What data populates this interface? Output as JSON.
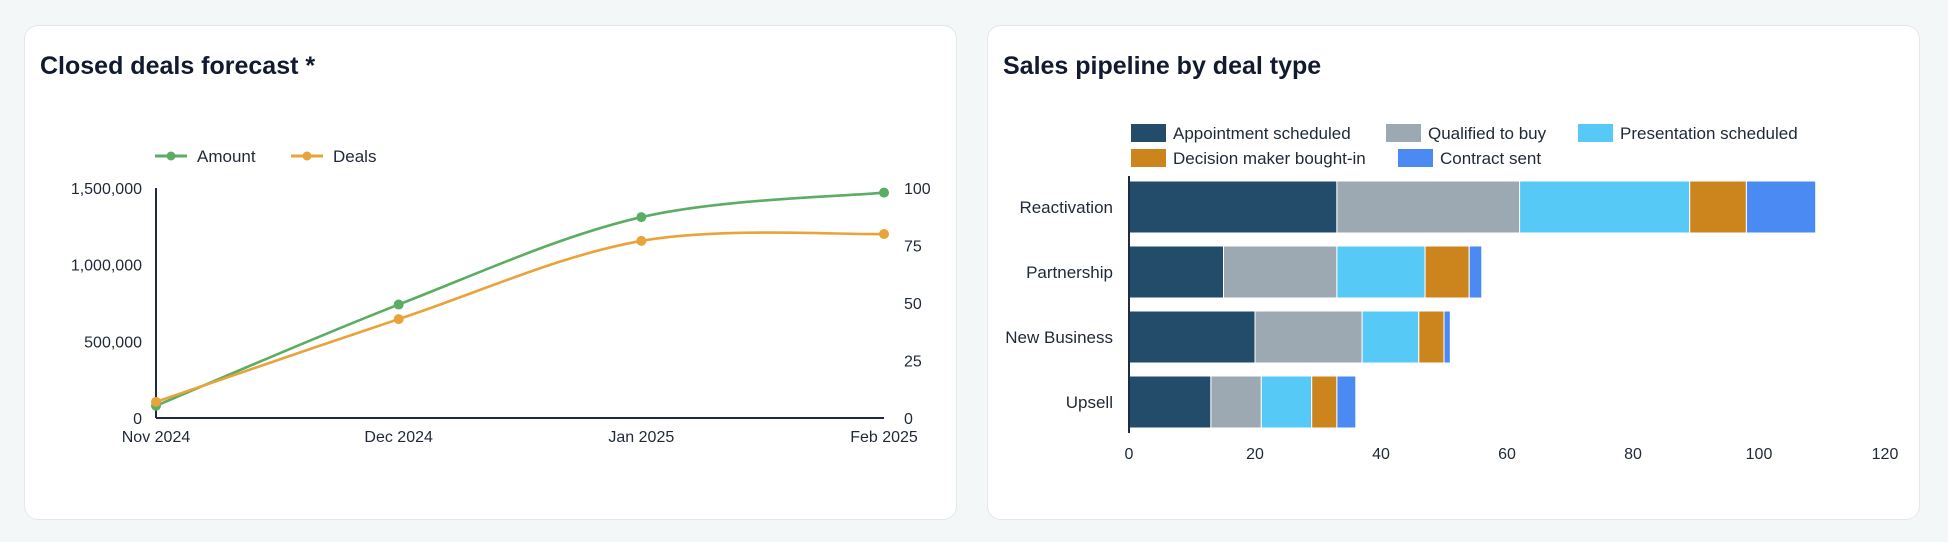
{
  "colors": {
    "amount": "#5aad62",
    "deals": "#e8a33a",
    "axis": "#1f2a44",
    "appointment": "#234b6a",
    "qualified": "#9ca8b2",
    "presentation": "#57c9f6",
    "decision": "#cc851c",
    "contract": "#4a8af2"
  },
  "left_card": {
    "title": "Closed deals forecast *"
  },
  "right_card": {
    "title": "Sales pipeline by deal type"
  },
  "chart_data": [
    {
      "type": "line",
      "title": "Closed deals forecast *",
      "categories": [
        "Nov 2024",
        "Dec 2024",
        "Jan 2025",
        "Feb 2025"
      ],
      "series": [
        {
          "name": "Amount",
          "axis": "left",
          "color": "#5aad62",
          "values": [
            80000,
            740000,
            1310000,
            1470000
          ]
        },
        {
          "name": "Deals",
          "axis": "right",
          "color": "#e8a33a",
          "values": [
            7,
            43,
            77,
            80
          ]
        }
      ],
      "y_left": {
        "min": 0,
        "max": 1500000,
        "ticks": [
          0,
          500000,
          1000000,
          1500000
        ],
        "tick_labels": [
          "0",
          "500,000",
          "1,000,000",
          "1,500,000"
        ]
      },
      "y_right": {
        "min": 0,
        "max": 100,
        "ticks": [
          0,
          25,
          50,
          75,
          100
        ],
        "tick_labels": [
          "0",
          "25",
          "50",
          "75",
          "100"
        ]
      },
      "legend_position": "top-left",
      "grid": false
    },
    {
      "type": "bar",
      "orientation": "horizontal",
      "stacked": true,
      "title": "Sales pipeline by deal type",
      "categories": [
        "Reactivation",
        "Partnership",
        "New Business",
        "Upsell"
      ],
      "series": [
        {
          "name": "Appointment scheduled",
          "color": "#234b6a",
          "values": [
            33,
            15,
            20,
            13
          ]
        },
        {
          "name": "Qualified to buy",
          "color": "#9ca8b2",
          "values": [
            29,
            18,
            17,
            8
          ]
        },
        {
          "name": "Presentation scheduled",
          "color": "#57c9f6",
          "values": [
            27,
            14,
            9,
            8
          ]
        },
        {
          "name": "Decision maker bought-in",
          "color": "#cc851c",
          "values": [
            9,
            7,
            4,
            4
          ]
        },
        {
          "name": "Contract sent",
          "color": "#4a8af2",
          "values": [
            11,
            2,
            1,
            3
          ]
        }
      ],
      "x_axis": {
        "min": 0,
        "max": 120,
        "ticks": [
          0,
          20,
          40,
          60,
          80,
          100,
          120
        ],
        "tick_labels": [
          "0",
          "20",
          "40",
          "60",
          "80",
          "100",
          "120"
        ]
      },
      "legend_position": "top",
      "grid": false
    }
  ]
}
